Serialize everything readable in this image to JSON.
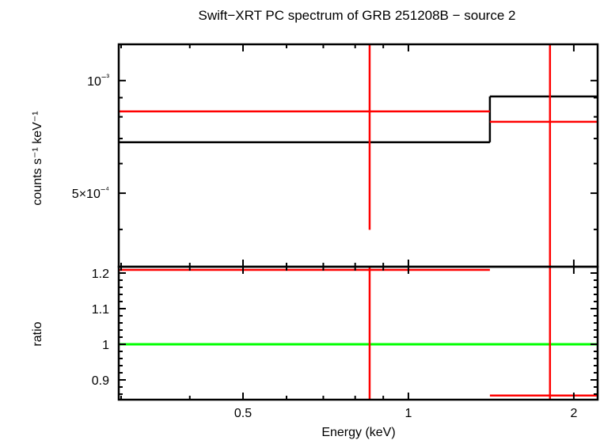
{
  "chart_data": [
    {
      "type": "scatter",
      "panel": "spectrum",
      "title": "Swift−XRT PC spectrum of GRB 251208B − source 2",
      "ylabel": "counts s⁻¹ keV⁻¹",
      "xscale": "log",
      "yscale": "log",
      "xlim": [
        0.297,
        2.21
      ],
      "ylim": [
        0.000318,
        0.00125
      ],
      "yticks": [
        {
          "value": 0.001,
          "label": "10⁻³"
        },
        {
          "value": 0.0005,
          "label": "5×10⁻⁴"
        }
      ],
      "yminor": [
        0.0004,
        0.0006,
        0.0007,
        0.0008,
        0.0009
      ],
      "data": [
        {
          "x": 0.85,
          "xlo": 0.297,
          "xhi": 1.407,
          "y": 0.000827,
          "ylo": 0.000399,
          "yhi": 0.0013,
          "color": "#ff0000"
        },
        {
          "x": 1.81,
          "xlo": 1.407,
          "xhi": 2.21,
          "y": 0.000776,
          "ylo": 0.0003,
          "yhi": 0.0013,
          "color": "#ff0000"
        }
      ],
      "model": [
        {
          "xlo": 0.297,
          "xhi": 1.407,
          "y": 0.000684
        },
        {
          "xlo": 1.407,
          "xhi": 2.21,
          "y": 0.000907
        }
      ],
      "model_color": "#000000"
    },
    {
      "type": "scatter",
      "panel": "ratio",
      "xlabel": "Energy (keV)",
      "ylabel": "ratio",
      "xscale": "log",
      "yscale": "linear",
      "xlim": [
        0.297,
        2.21
      ],
      "ylim": [
        0.8444,
        1.2178
      ],
      "xticks": [
        {
          "value": 0.5,
          "label": "0.5"
        },
        {
          "value": 1,
          "label": "1"
        },
        {
          "value": 2,
          "label": "2"
        }
      ],
      "xminor": [
        0.3,
        0.4,
        0.6,
        0.7,
        0.8,
        0.9
      ],
      "yticks": [
        {
          "value": 0.9,
          "label": "0.9"
        },
        {
          "value": 1,
          "label": "1"
        },
        {
          "value": 1.1,
          "label": "1.1"
        },
        {
          "value": 1.2,
          "label": "1.2"
        }
      ],
      "data": [
        {
          "x": 0.85,
          "xlo": 0.297,
          "xhi": 1.407,
          "y": 1.209,
          "ylo": 0.8,
          "yhi": 1.3,
          "color": "#ff0000"
        },
        {
          "x": 1.81,
          "xlo": 1.407,
          "xhi": 2.21,
          "y": 0.856,
          "ylo": 0.8,
          "yhi": 1.3,
          "color": "#ff0000"
        }
      ],
      "reference_line": {
        "y": 1,
        "color": "#00ff00"
      }
    }
  ]
}
